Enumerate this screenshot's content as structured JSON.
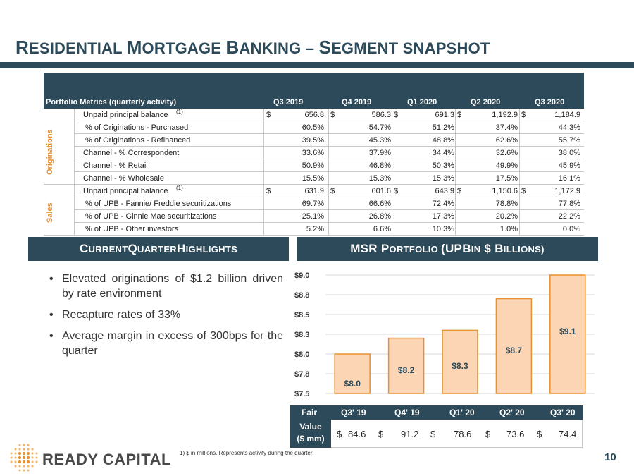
{
  "title": {
    "part1_cap": "R",
    "part1_rest": "ESIDENTIAL ",
    "part2_cap": "M",
    "part2_rest": "ORTGAGE ",
    "part3_cap": "B",
    "part3_rest": "ANKING – ",
    "part4_cap": "S",
    "part4_rest": "EGMENT SNAPSHOT"
  },
  "portfolio_table": {
    "header_label": "Portfolio Metrics (quarterly activity)",
    "columns": [
      "Q3 2019",
      "Q4 2019",
      "Q1 2020",
      "Q2 2020",
      "Q3 2020"
    ],
    "groups": [
      {
        "name": "Originations",
        "rows": [
          {
            "label": "Unpaid principal balance",
            "sup": "(1)",
            "dollar": true,
            "values": [
              "656.8",
              "586.3",
              "691.3",
              "1,192.9",
              "1,184.9"
            ]
          },
          {
            "label": " % of Originations - Purchased",
            "values": [
              "60.5%",
              "54.7%",
              "51.2%",
              "37.4%",
              "44.3%"
            ]
          },
          {
            "label": " % of Originations - Refinanced",
            "values": [
              "39.5%",
              "45.3%",
              "48.8%",
              "62.6%",
              "55.7%"
            ]
          },
          {
            "label": "Channel - % Correspondent",
            "values": [
              "33.6%",
              "37.9%",
              "34.4%",
              "32.6%",
              "38.0%"
            ]
          },
          {
            "label": "Channel - % Retail",
            "values": [
              "50.9%",
              "46.8%",
              "50.3%",
              "49.9%",
              "45.9%"
            ]
          },
          {
            "label": "Channel - % Wholesale",
            "values": [
              "15.5%",
              "15.3%",
              "15.3%",
              "17.5%",
              "16.1%"
            ]
          }
        ]
      },
      {
        "name": "Sales",
        "rows": [
          {
            "label": "Unpaid principal balance",
            "sup": "(1)",
            "dollar": true,
            "values": [
              "631.9",
              "601.6",
              "643.9",
              "1,150.6",
              "1,172.9"
            ]
          },
          {
            "label": " % of UPB - Fannie/ Freddie securitizations",
            "values": [
              "69.7%",
              "66.6%",
              "72.4%",
              "78.8%",
              "77.8%"
            ]
          },
          {
            "label": " % of UPB - Ginnie Mae securitizations",
            "values": [
              "25.1%",
              "26.8%",
              "17.3%",
              "20.2%",
              "22.2%"
            ]
          },
          {
            "label": " % of UPB - Other investors",
            "values": [
              "5.2%",
              "6.6%",
              "10.3%",
              "1.0%",
              "0.0%"
            ]
          }
        ]
      }
    ],
    "dollar_sign": "$"
  },
  "highlights": {
    "header": "CURRENT QUARTER HIGHLIGHTS",
    "header_parts": [
      {
        "cap": "C",
        "rest": "URRENT "
      },
      {
        "cap": "Q",
        "rest": "UARTER "
      },
      {
        "cap": "H",
        "rest": "IGHLIGHTS"
      }
    ],
    "bullets": [
      "Elevated originations of $1.2 billion driven by rate environment",
      "Recapture rates of 33%",
      "Average margin in excess of 300bps for the quarter"
    ]
  },
  "msr": {
    "header_pre": "MSR ",
    "header_cap1": "P",
    "header_rest1": "ORTFOLIO ",
    "header_paren": "(UPB ",
    "header_small": "IN",
    "header_dollar": " $ ",
    "header_cap2": "B",
    "header_rest2": "ILLIONS)"
  },
  "chart_data": {
    "type": "bar",
    "categories": [
      "Q3' 19",
      "Q4' 19",
      "Q1' 20",
      "Q2' 20",
      "Q3' 20"
    ],
    "values": [
      8.0,
      8.2,
      8.3,
      8.7,
      9.1
    ],
    "data_labels": [
      "$8.0",
      "$8.2",
      "$8.3",
      "$8.7",
      "$9.1"
    ],
    "yticks": [
      "$9.0",
      "$8.8",
      "$8.5",
      "$8.3",
      "$8.0",
      "$7.8",
      "$7.5"
    ],
    "ytick_values": [
      9.0,
      8.75,
      8.5,
      8.25,
      8.0,
      7.75,
      7.5
    ],
    "ylim": [
      7.5,
      9.0
    ],
    "grid": true,
    "bar_color": "#fbd5b4",
    "bar_border": "#e8912f",
    "label_color": "#2c4a5a",
    "xlabel": "",
    "ylabel": "",
    "title": ""
  },
  "fair_value": {
    "header_label": "Fair",
    "label_line2": "Value",
    "label_line3": "($ mm)",
    "columns": [
      "Q3' 19",
      "Q4' 19",
      "Q1' 20",
      "Q2' 20",
      "Q3' 20"
    ],
    "dollar_sign": "$",
    "values": [
      "84.6",
      "91.2",
      "78.6",
      "73.6",
      "74.4"
    ]
  },
  "footer": {
    "logo_text": "READY CAPITAL",
    "footnote": "1)   $ in millions. Represents activity during the quarter.",
    "page_number": "10"
  },
  "colors": {
    "navy": "#2c4a5a",
    "orange": "#e8912f"
  }
}
